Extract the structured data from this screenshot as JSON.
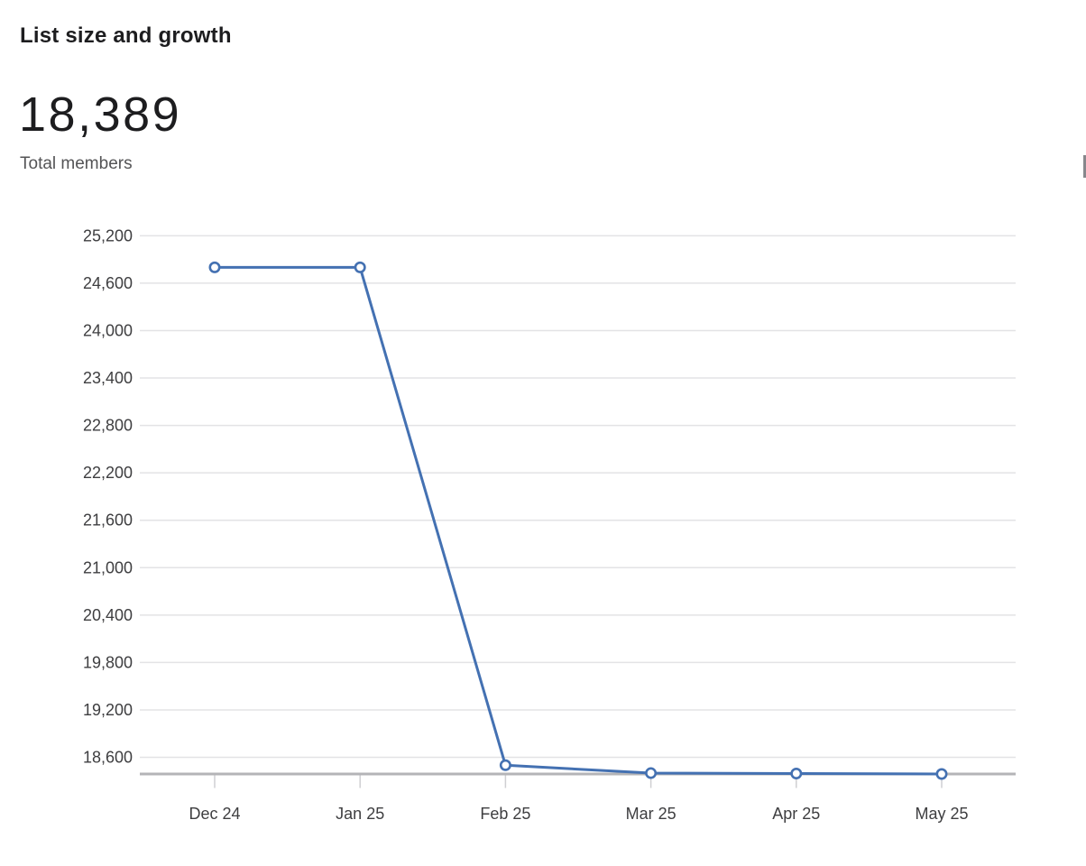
{
  "header": {
    "title": "List size and growth"
  },
  "metric": {
    "value": "18,389",
    "label": "Total members"
  },
  "chart_data": {
    "type": "line",
    "title": "List size and growth",
    "categories": [
      "Dec 24",
      "Jan 25",
      "Feb 25",
      "Mar 25",
      "Apr 25",
      "May 25"
    ],
    "series": [
      {
        "name": "Total members",
        "values": [
          24800,
          24800,
          18500,
          18400,
          18395,
          18389
        ]
      }
    ],
    "xlabel": "",
    "ylabel": "",
    "yticks": [
      18600,
      19200,
      19800,
      20400,
      21000,
      21600,
      22200,
      22800,
      23400,
      24000,
      24600,
      25200
    ],
    "ylim": [
      18389,
      25330
    ],
    "grid": true,
    "legend_position": "none",
    "colors": {
      "line": "#4471b2",
      "marker_fill": "#ffffff",
      "gridline": "#e3e3e5",
      "baseline": "#b4b4b7",
      "tick_mark": "#cfcfd2",
      "axis_label": "#3e3e40"
    }
  }
}
